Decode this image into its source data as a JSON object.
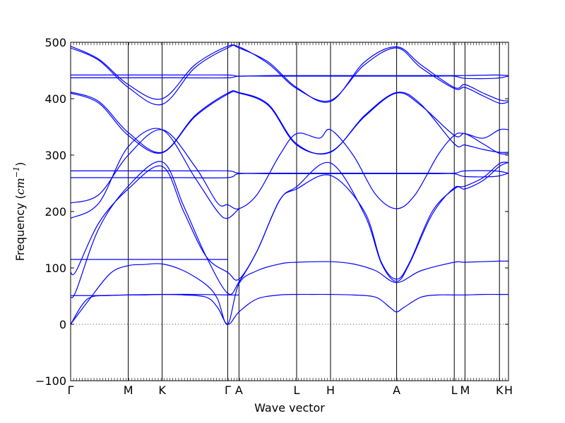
{
  "chart_data": {
    "type": "line",
    "title": "",
    "xlabel": "Wave vector",
    "ylabel_prefix": "Frequency (",
    "ylabel_unit": "cm",
    "ylabel_exp": "−1",
    "ylabel_suffix": ")",
    "ylim": [
      -100,
      500
    ],
    "yticks": [
      -100,
      0,
      100,
      200,
      300,
      400,
      500
    ],
    "ytick_labels": [
      "−100",
      "0",
      "100",
      "200",
      "300",
      "400",
      "500"
    ],
    "xlim": [
      0,
      7.75
    ],
    "high_symmetry_points": [
      {
        "label": "Γ",
        "x": 0.0
      },
      {
        "label": "M",
        "x": 1.02
      },
      {
        "label": "K",
        "x": 1.62
      },
      {
        "label": "Γ",
        "x": 2.78
      },
      {
        "label": "A",
        "x": 2.98
      },
      {
        "label": "L",
        "x": 4.0
      },
      {
        "label": "H",
        "x": 4.6
      },
      {
        "label": "A",
        "x": 5.77
      },
      {
        "label": "L",
        "x": 6.79
      },
      {
        "label": "M",
        "x": 6.98
      },
      {
        "label": "K",
        "x": 7.59
      },
      {
        "label": "H",
        "x": 7.75
      }
    ],
    "zero_line": 0,
    "line_color": "#0000ff",
    "series": [
      {
        "x": [
          0,
          0.3,
          0.7,
          1.02,
          1.3,
          1.62,
          2.0,
          2.4,
          2.6,
          2.78,
          2.98,
          3.3,
          3.7,
          4.0,
          4.3,
          4.6,
          5.0,
          5.4,
          5.65,
          5.77,
          5.9,
          6.2,
          6.5,
          6.79,
          6.98,
          7.3,
          7.59,
          7.75
        ],
        "y": [
          0,
          45,
          51,
          52,
          52,
          53,
          52,
          48,
          30,
          0,
          22,
          45,
          52,
          53,
          53,
          53,
          52,
          48,
          30,
          22,
          30,
          48,
          52,
          52,
          52,
          53,
          53,
          53
        ]
      },
      {
        "x": [
          0,
          0.3,
          0.7,
          1.02,
          1.3,
          1.62,
          2.0,
          2.4,
          2.6,
          2.78,
          2.98,
          3.3,
          3.7,
          4.0,
          4.6,
          5.0,
          5.4,
          5.77,
          6.2,
          6.79,
          6.98,
          7.59,
          7.75
        ],
        "y": [
          0,
          40,
          90,
          104,
          106,
          107,
          95,
          70,
          45,
          0,
          72,
          95,
          107,
          110,
          111,
          107,
          95,
          74,
          95,
          110,
          110,
          112,
          112
        ]
      },
      {
        "x": [
          0,
          0.5,
          1.02,
          1.62,
          2.2,
          2.78,
          2.98
        ],
        "y": [
          51,
          51,
          52,
          53,
          53,
          52,
          52
        ]
      },
      {
        "x": [
          0,
          0.1,
          0.5,
          1.02,
          1.62,
          2.0,
          2.4,
          2.78,
          2.98,
          3.3,
          3.7,
          4.0,
          4.6,
          5.2,
          5.5,
          5.77,
          6.0,
          6.4,
          6.79,
          6.98,
          7.3,
          7.59,
          7.75
        ],
        "y": [
          92,
          95,
          180,
          240,
          280,
          200,
          120,
          92,
          80,
          130,
          220,
          240,
          264,
          200,
          110,
          80,
          110,
          200,
          240,
          245,
          260,
          285,
          287
        ]
      },
      {
        "x": [
          0,
          0.1,
          0.5,
          1.02,
          1.62,
          2.0,
          2.4,
          2.78,
          2.98,
          3.3,
          3.7,
          4.0,
          4.6,
          5.2,
          5.5,
          5.77,
          6.0,
          6.4,
          6.79,
          6.98,
          7.3,
          7.59,
          7.75
        ],
        "y": [
          48,
          60,
          170,
          245,
          288,
          210,
          120,
          55,
          75,
          130,
          220,
          244,
          286,
          195,
          108,
          76,
          108,
          195,
          242,
          240,
          255,
          280,
          287
        ]
      },
      {
        "x": [
          0,
          1.0,
          2.0,
          2.78
        ],
        "y": [
          115,
          115,
          115,
          115
        ]
      },
      {
        "x": [
          0,
          0.5,
          1.02,
          1.62,
          2.2,
          2.6,
          2.78,
          2.98,
          3.3,
          3.7,
          4.0,
          4.4,
          4.6,
          5.0,
          5.4,
          5.77,
          6.1,
          6.5,
          6.79,
          6.98,
          7.3,
          7.59,
          7.75
        ],
        "y": [
          215,
          230,
          300,
          345,
          280,
          215,
          212,
          205,
          230,
          300,
          338,
          330,
          345,
          300,
          230,
          205,
          230,
          300,
          335,
          338,
          330,
          345,
          345
        ]
      },
      {
        "x": [
          0,
          0.5,
          1.02,
          1.62,
          2.2,
          2.6,
          2.78,
          2.98
        ],
        "y": [
          188,
          215,
          315,
          345,
          260,
          200,
          188,
          205
        ]
      },
      {
        "x": [
          0,
          0.5,
          1.02,
          1.62,
          2.2,
          2.78,
          2.98,
          3.5,
          4.0,
          4.6,
          5.2,
          5.77,
          6.2,
          6.79,
          6.98,
          7.3,
          7.59,
          7.75
        ],
        "y": [
          412,
          395,
          340,
          305,
          370,
          410,
          411,
          390,
          320,
          305,
          370,
          411,
          390,
          320,
          318,
          310,
          305,
          305
        ]
      },
      {
        "x": [
          0,
          0.5,
          1.02,
          1.62,
          2.2,
          2.78,
          2.98,
          3.5,
          4.0,
          4.6,
          5.2,
          5.77,
          6.2,
          6.79,
          6.98,
          7.3,
          7.59,
          7.75
        ],
        "y": [
          410,
          392,
          335,
          304,
          368,
          408,
          410,
          388,
          318,
          306,
          368,
          410,
          388,
          335,
          338,
          320,
          303,
          303
        ]
      },
      {
        "x": [
          0,
          0.5,
          1.02,
          1.62,
          2.2,
          2.78,
          2.98,
          3.5,
          4.0,
          4.6,
          5.2,
          5.77,
          6.2,
          6.79,
          6.98,
          7.3,
          7.59,
          7.75
        ],
        "y": [
          493,
          470,
          425,
          400,
          460,
          493,
          490,
          465,
          420,
          395,
          465,
          492,
          460,
          420,
          425,
          410,
          398,
          396
        ]
      },
      {
        "x": [
          0,
          0.5,
          1.02,
          1.62,
          2.2,
          2.78,
          2.98,
          3.5,
          4.0,
          4.6,
          5.2,
          5.77,
          6.2,
          6.79,
          6.98,
          7.3,
          7.59,
          7.75
        ],
        "y": [
          490,
          468,
          420,
          390,
          455,
          490,
          492,
          462,
          418,
          397,
          460,
          490,
          455,
          418,
          420,
          405,
          392,
          394
        ]
      },
      {
        "x": [
          0,
          1.0,
          2.0,
          2.78,
          2.98,
          3.5,
          4.0,
          4.6,
          5.2,
          5.77,
          6.4,
          6.79,
          6.98,
          7.5,
          7.75
        ],
        "y": [
          442,
          442,
          442,
          442,
          440,
          441,
          441,
          441,
          441,
          441,
          441,
          441,
          441,
          442,
          441
        ]
      },
      {
        "x": [
          0,
          1.0,
          2.0,
          2.78,
          2.98,
          3.5,
          4.0,
          4.6,
          5.2,
          5.77,
          6.4,
          6.79,
          6.98,
          7.5,
          7.75
        ],
        "y": [
          437,
          437,
          437,
          437,
          440,
          440,
          440,
          440,
          440,
          440,
          440,
          440,
          436,
          436,
          440
        ]
      },
      {
        "x": [
          0,
          1.0,
          2.0,
          2.78,
          2.98,
          3.5,
          4.0,
          4.6,
          5.2,
          5.77,
          6.4,
          6.79,
          6.98,
          7.5,
          7.75
        ],
        "y": [
          272,
          272,
          272,
          272,
          268,
          268,
          268,
          268,
          268,
          268,
          268,
          268,
          272,
          272,
          268
        ]
      },
      {
        "x": [
          0,
          1.0,
          2.0,
          2.78,
          2.98,
          3.5,
          4.0,
          4.6,
          5.2,
          5.77,
          6.4,
          6.79,
          6.98,
          7.5,
          7.75
        ],
        "y": [
          260,
          260,
          260,
          260,
          267,
          267,
          267,
          267,
          267,
          267,
          267,
          267,
          262,
          262,
          268
        ]
      }
    ]
  }
}
